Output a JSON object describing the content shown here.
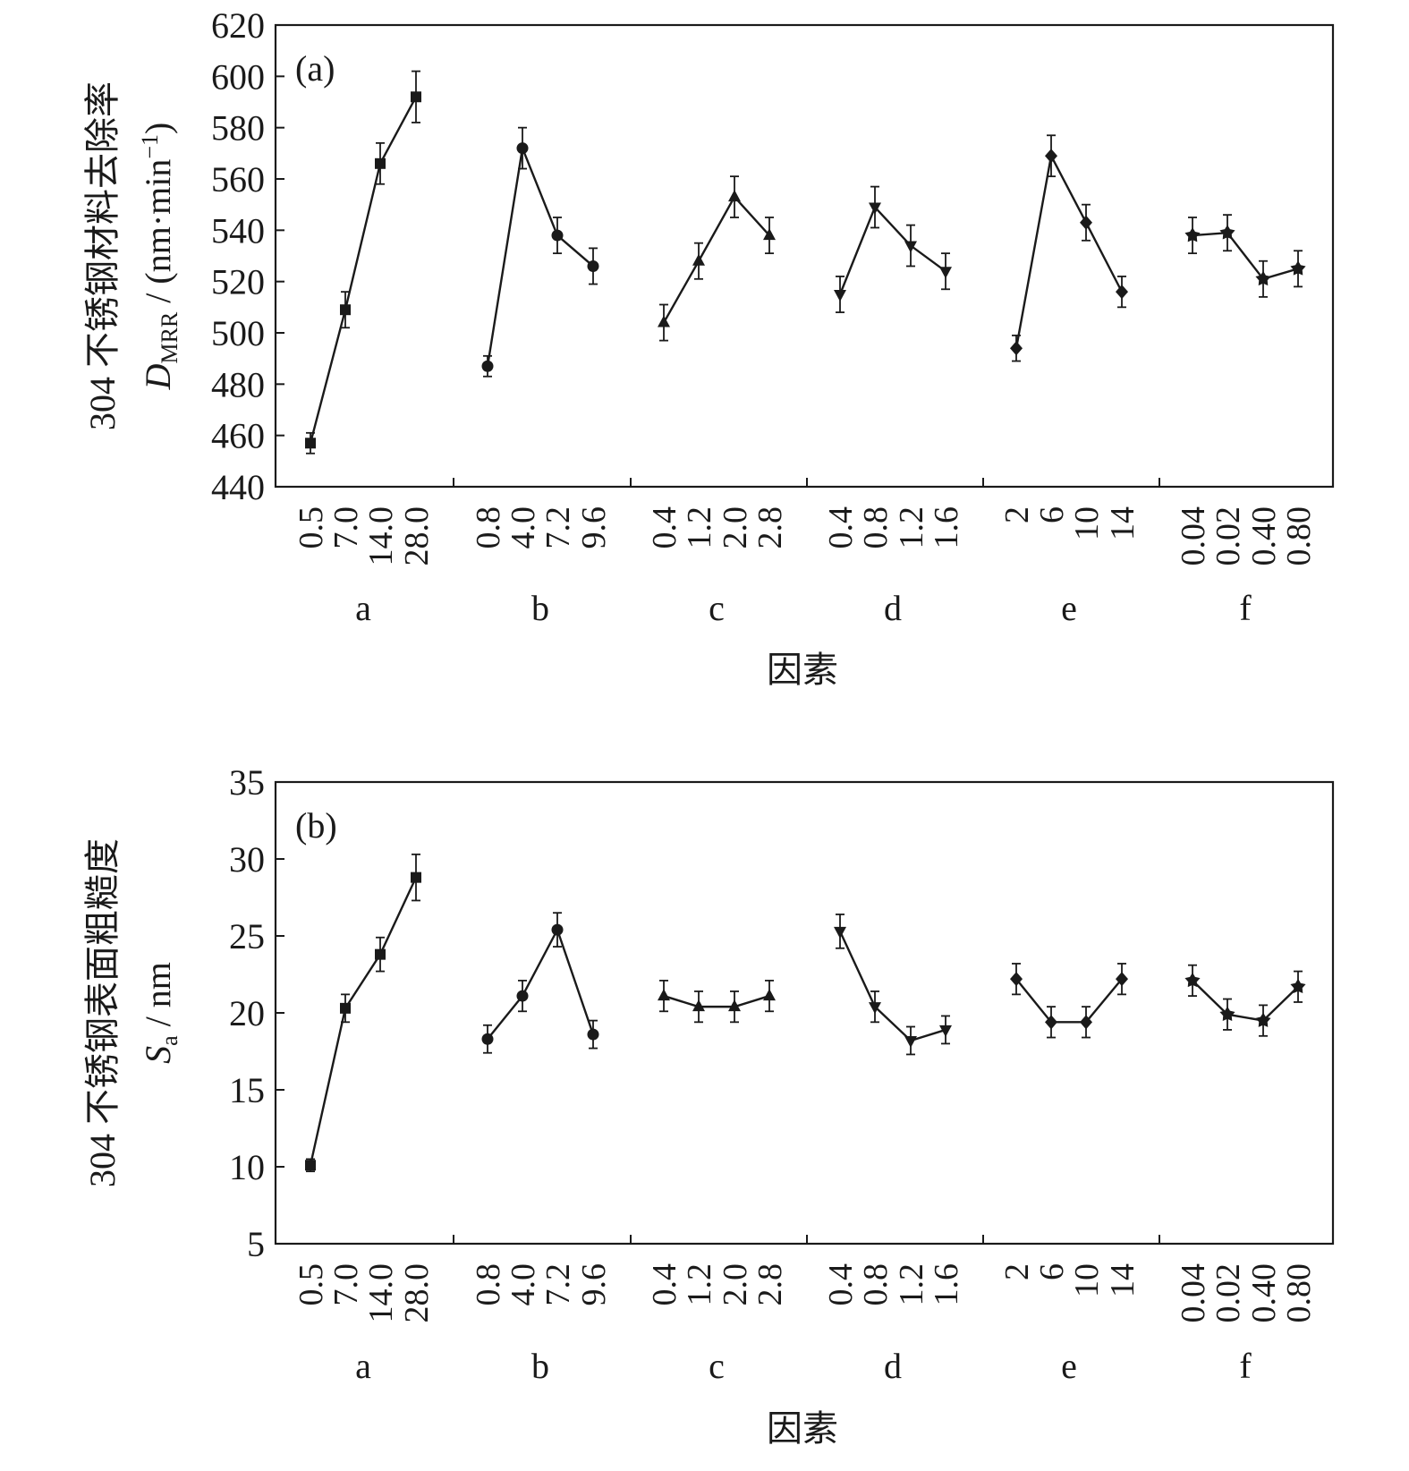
{
  "chart_data": [
    {
      "type": "line",
      "panel_label": "(a)",
      "ylabel_line1": "304 不锈钢材料去除率",
      "ylabel_symbol": "D",
      "ylabel_subscript": "MRR",
      "ylabel_unit": " / (nm·min",
      "ylabel_unit_sup": "−1",
      "ylabel_unit_close": ")",
      "xlabel": "因素",
      "ylim": [
        440,
        620
      ],
      "yticks": [
        "440",
        "460",
        "480",
        "500",
        "520",
        "540",
        "560",
        "580",
        "600",
        "620"
      ],
      "grid": false,
      "groups": [
        {
          "label": "a",
          "marker": "square",
          "levels": [
            "0.5",
            "7.0",
            "14.0",
            "28.0"
          ],
          "values": [
            457,
            509,
            566,
            592
          ],
          "errors": [
            4,
            7,
            8,
            10
          ]
        },
        {
          "label": "b",
          "marker": "circle",
          "levels": [
            "0.8",
            "4.0",
            "7.2",
            "9.6"
          ],
          "values": [
            487,
            572,
            538,
            526
          ],
          "errors": [
            4,
            8,
            7,
            7
          ]
        },
        {
          "label": "c",
          "marker": "triangle-up",
          "levels": [
            "0.4",
            "1.2",
            "2.0",
            "2.8"
          ],
          "values": [
            504,
            528,
            553,
            538
          ],
          "errors": [
            7,
            7,
            8,
            7
          ]
        },
        {
          "label": "d",
          "marker": "triangle-down",
          "levels": [
            "0.4",
            "0.8",
            "1.2",
            "1.6"
          ],
          "values": [
            515,
            549,
            534,
            524
          ],
          "errors": [
            7,
            8,
            8,
            7
          ]
        },
        {
          "label": "e",
          "marker": "diamond",
          "levels": [
            "2",
            "6",
            "10",
            "14"
          ],
          "values": [
            494,
            569,
            543,
            516
          ],
          "errors": [
            5,
            8,
            7,
            6
          ]
        },
        {
          "label": "f",
          "marker": "star",
          "levels": [
            "0.04",
            "0.02",
            "0.40",
            "0.80"
          ],
          "values": [
            538,
            539,
            521,
            525
          ],
          "errors": [
            7,
            7,
            7,
            7
          ]
        }
      ]
    },
    {
      "type": "line",
      "panel_label": "(b)",
      "ylabel_line1": "304 不锈钢表面粗糙度",
      "ylabel_symbol": "S",
      "ylabel_subscript": "a",
      "ylabel_unit": " / nm",
      "ylabel_unit_sup": "",
      "ylabel_unit_close": "",
      "xlabel": "因素",
      "ylim": [
        5,
        35
      ],
      "yticks": [
        "5",
        "10",
        "15",
        "20",
        "25",
        "30",
        "35"
      ],
      "grid": false,
      "groups": [
        {
          "label": "a",
          "marker": "square",
          "levels": [
            "0.5",
            "7.0",
            "14.0",
            "28.0"
          ],
          "values": [
            10.1,
            20.3,
            23.8,
            28.8
          ],
          "errors": [
            0.4,
            0.9,
            1.1,
            1.5
          ]
        },
        {
          "label": "b",
          "marker": "circle",
          "levels": [
            "0.8",
            "4.0",
            "7.2",
            "9.6"
          ],
          "values": [
            18.3,
            21.1,
            25.4,
            18.6
          ],
          "errors": [
            0.9,
            1.0,
            1.1,
            0.9
          ]
        },
        {
          "label": "c",
          "marker": "triangle-up",
          "levels": [
            "0.4",
            "1.2",
            "2.0",
            "2.8"
          ],
          "values": [
            21.1,
            20.4,
            20.4,
            21.1
          ],
          "errors": [
            1.0,
            1.0,
            1.0,
            1.0
          ]
        },
        {
          "label": "d",
          "marker": "triangle-down",
          "levels": [
            "0.4",
            "0.8",
            "1.2",
            "1.6"
          ],
          "values": [
            25.3,
            20.4,
            18.2,
            18.9
          ],
          "errors": [
            1.1,
            1.0,
            0.9,
            0.9
          ]
        },
        {
          "label": "e",
          "marker": "diamond",
          "levels": [
            "2",
            "6",
            "10",
            "14"
          ],
          "values": [
            22.2,
            19.4,
            19.4,
            22.2
          ],
          "errors": [
            1.0,
            1.0,
            1.0,
            1.0
          ]
        },
        {
          "label": "f",
          "marker": "star",
          "levels": [
            "0.04",
            "0.02",
            "0.40",
            "0.80"
          ],
          "values": [
            22.1,
            19.9,
            19.5,
            21.7
          ],
          "errors": [
            1.0,
            1.0,
            1.0,
            1.0
          ]
        }
      ]
    }
  ]
}
